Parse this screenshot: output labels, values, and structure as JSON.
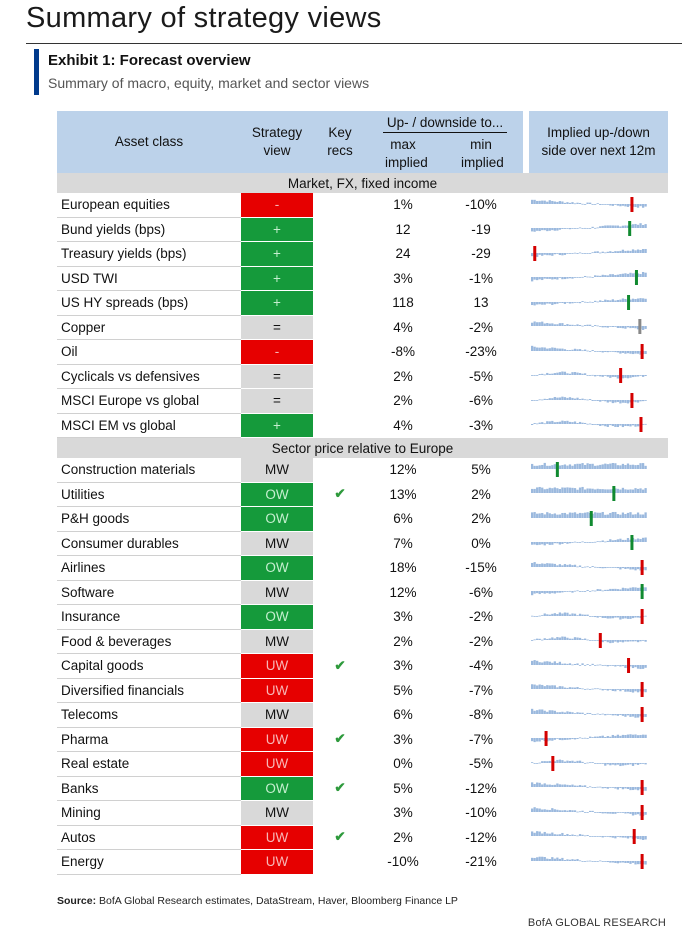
{
  "page": {
    "title": "Summary of strategy views",
    "exhibit_title": "Exhibit 1: Forecast overview",
    "exhibit_subtitle": "Summary of macro, equity, market and sector views"
  },
  "table": {
    "headers": {
      "asset_class": "Asset class",
      "strategy_view": "Strategy view",
      "key_recs": "Key recs",
      "updown_group": "Up- / downside to...",
      "max_implied": "max implied",
      "min_implied": "min implied",
      "implied_12m": "Implied up-/down side over next 12m"
    },
    "sections": [
      {
        "label": "Market, FX, fixed income",
        "rows": [
          {
            "asset": "European equities",
            "view": "-",
            "view_type": "neg",
            "key_rec": "",
            "max": "1%",
            "min": "-10%",
            "marker": 0.88,
            "marker_color": "#d40000",
            "shape": "downtrend"
          },
          {
            "asset": "Bund yields (bps)",
            "view": "+",
            "view_type": "pos",
            "key_rec": "",
            "max": "12",
            "min": "-19",
            "marker": 0.86,
            "marker_color": "#108a30",
            "shape": "uptrend"
          },
          {
            "asset": "Treasury yields (bps)",
            "view": "+",
            "view_type": "pos",
            "key_rec": "",
            "max": "24",
            "min": "-29",
            "marker": 0.02,
            "marker_color": "#d40000",
            "shape": "uptrend"
          },
          {
            "asset": "USD TWI",
            "view": "+",
            "view_type": "pos",
            "key_rec": "",
            "max": "3%",
            "min": "-1%",
            "marker": 0.92,
            "marker_color": "#108a30",
            "shape": "uptrend"
          },
          {
            "asset": "US HY spreads (bps)",
            "view": "+",
            "view_type": "pos",
            "key_rec": "",
            "max": "118",
            "min": "13",
            "marker": 0.85,
            "marker_color": "#108a30",
            "shape": "uptrend"
          },
          {
            "asset": "Copper",
            "view": "=",
            "view_type": "neu",
            "key_rec": "",
            "max": "4%",
            "min": "-2%",
            "marker": 0.95,
            "marker_color": "#888888",
            "shape": "downtrend"
          },
          {
            "asset": "Oil",
            "view": "-",
            "view_type": "neg",
            "key_rec": "",
            "max": "-8%",
            "min": "-23%",
            "marker": 0.97,
            "marker_color": "#d40000",
            "shape": "downtrend"
          },
          {
            "asset": "Cyclicals vs defensives",
            "view": "=",
            "view_type": "neu",
            "key_rec": "",
            "max": "2%",
            "min": "-5%",
            "marker": 0.78,
            "marker_color": "#d40000",
            "shape": "wave"
          },
          {
            "asset": "MSCI Europe vs global",
            "view": "=",
            "view_type": "neu",
            "key_rec": "",
            "max": "2%",
            "min": "-6%",
            "marker": 0.88,
            "marker_color": "#d40000",
            "shape": "wave"
          },
          {
            "asset": "MSCI EM vs global",
            "view": "+",
            "view_type": "pos",
            "key_rec": "",
            "max": "4%",
            "min": "-3%",
            "marker": 0.96,
            "marker_color": "#d40000",
            "shape": "wave"
          }
        ]
      },
      {
        "label": "Sector price relative to Europe",
        "rows": [
          {
            "asset": "Construction materials",
            "view": "MW",
            "view_type": "neu",
            "key_rec": "",
            "max": "12%",
            "min": "5%",
            "marker": 0.22,
            "marker_color": "#108a30",
            "shape": "flat_high"
          },
          {
            "asset": "Utilities",
            "view": "OW",
            "view_type": "pos",
            "key_rec": "✔",
            "max": "13%",
            "min": "2%",
            "marker": 0.72,
            "marker_color": "#108a30",
            "shape": "flat_high"
          },
          {
            "asset": "P&H goods",
            "view": "OW",
            "view_type": "pos",
            "key_rec": "",
            "max": "6%",
            "min": "2%",
            "marker": 0.52,
            "marker_color": "#108a30",
            "shape": "flat_high"
          },
          {
            "asset": "Consumer durables",
            "view": "MW",
            "view_type": "neu",
            "key_rec": "",
            "max": "7%",
            "min": "0%",
            "marker": 0.88,
            "marker_color": "#108a30",
            "shape": "uptrend"
          },
          {
            "asset": "Airlines",
            "view": "OW",
            "view_type": "pos",
            "key_rec": "",
            "max": "18%",
            "min": "-15%",
            "marker": 0.97,
            "marker_color": "#d40000",
            "shape": "downtrend"
          },
          {
            "asset": "Software",
            "view": "MW",
            "view_type": "neu",
            "key_rec": "",
            "max": "12%",
            "min": "-6%",
            "marker": 0.97,
            "marker_color": "#108a30",
            "shape": "uptrend"
          },
          {
            "asset": "Insurance",
            "view": "OW",
            "view_type": "pos",
            "key_rec": "",
            "max": "3%",
            "min": "-2%",
            "marker": 0.97,
            "marker_color": "#d40000",
            "shape": "wave"
          },
          {
            "asset": "Food & beverages",
            "view": "MW",
            "view_type": "neu",
            "key_rec": "",
            "max": "2%",
            "min": "-2%",
            "marker": 0.6,
            "marker_color": "#d40000",
            "shape": "wave"
          },
          {
            "asset": "Capital goods",
            "view": "UW",
            "view_type": "neg",
            "key_rec": "✔",
            "max": "3%",
            "min": "-4%",
            "marker": 0.85,
            "marker_color": "#d40000",
            "shape": "downtrend"
          },
          {
            "asset": "Diversified financials",
            "view": "UW",
            "view_type": "neg",
            "key_rec": "",
            "max": "5%",
            "min": "-7%",
            "marker": 0.97,
            "marker_color": "#d40000",
            "shape": "downtrend"
          },
          {
            "asset": "Telecoms",
            "view": "MW",
            "view_type": "neu",
            "key_rec": "",
            "max": "6%",
            "min": "-8%",
            "marker": 0.97,
            "marker_color": "#d40000",
            "shape": "downtrend"
          },
          {
            "asset": "Pharma",
            "view": "UW",
            "view_type": "neg",
            "key_rec": "✔",
            "max": "3%",
            "min": "-7%",
            "marker": 0.12,
            "marker_color": "#d40000",
            "shape": "uptrend"
          },
          {
            "asset": "Real estate",
            "view": "UW",
            "view_type": "neg",
            "key_rec": "",
            "max": "0%",
            "min": "-5%",
            "marker": 0.18,
            "marker_color": "#d40000",
            "shape": "wave"
          },
          {
            "asset": "Banks",
            "view": "OW",
            "view_type": "pos",
            "key_rec": "✔",
            "max": "5%",
            "min": "-12%",
            "marker": 0.97,
            "marker_color": "#d40000",
            "shape": "downtrend"
          },
          {
            "asset": "Mining",
            "view": "MW",
            "view_type": "neu",
            "key_rec": "",
            "max": "3%",
            "min": "-10%",
            "marker": 0.97,
            "marker_color": "#d40000",
            "shape": "downtrend"
          },
          {
            "asset": "Autos",
            "view": "UW",
            "view_type": "neg",
            "key_rec": "✔",
            "max": "2%",
            "min": "-12%",
            "marker": 0.9,
            "marker_color": "#d40000",
            "shape": "downtrend"
          },
          {
            "asset": "Energy",
            "view": "UW",
            "view_type": "neg",
            "key_rec": "",
            "max": "-10%",
            "min": "-21%",
            "marker": 0.97,
            "marker_color": "#d40000",
            "shape": "downtrend"
          }
        ]
      }
    ]
  },
  "colors": {
    "header_bg": "#bcd2ea",
    "section_bg": "#d9d9d9",
    "negative": "#e60000",
    "positive": "#159a3b",
    "neutral": "#d9d9d9",
    "spark_fill": "#9bb9de"
  },
  "footer": {
    "source_label": "Source:",
    "source_text": " BofA Global Research estimates, DataStream, Haver, Bloomberg Finance LP",
    "brand": "BofA GLOBAL RESEARCH"
  }
}
